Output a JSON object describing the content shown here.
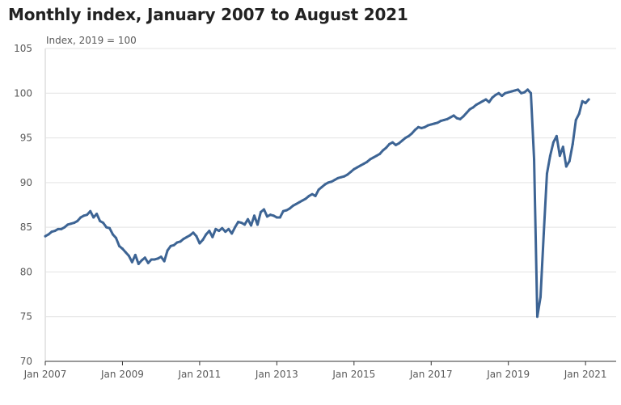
{
  "chart_data": {
    "type": "line",
    "title": "Monthly index, January 2007 to August 2021",
    "ylabel": "Index, 2019 = 100",
    "xlabel": "",
    "ylim": [
      70,
      105
    ],
    "xlim": [
      "2007-01",
      "2021-08"
    ],
    "grid": "horizontal",
    "legend": "none",
    "line_color": "#3d6494",
    "y_ticks": [
      "70",
      "75",
      "80",
      "85",
      "90",
      "95",
      "100",
      "105"
    ],
    "x_ticks": [
      "Jan 2007",
      "Jan 2009",
      "Jan 2011",
      "Jan 2013",
      "Jan 2015",
      "Jan 2017",
      "Jan 2019",
      "Jan 2021"
    ],
    "series": [
      {
        "start": "2007-01",
        "frequency": "monthly",
        "values": [
          84.0,
          84.2,
          84.5,
          84.6,
          84.8,
          84.8,
          85.0,
          85.3,
          85.4,
          85.5,
          85.7,
          86.1,
          86.3,
          86.4,
          86.8,
          86.1,
          86.5,
          85.7,
          85.5,
          85.0,
          84.9,
          84.2,
          83.8,
          82.9,
          82.6,
          82.2,
          81.8,
          81.1,
          81.9,
          80.9,
          81.3,
          81.6,
          81.0,
          81.4,
          81.4,
          81.5,
          81.7,
          81.2,
          82.4,
          82.9,
          83.0,
          83.3,
          83.4,
          83.7,
          83.9,
          84.1,
          84.4,
          84.0,
          83.2,
          83.6,
          84.2,
          84.6,
          83.9,
          84.8,
          84.6,
          84.9,
          84.5,
          84.8,
          84.3,
          85.0,
          85.6,
          85.5,
          85.3,
          85.9,
          85.2,
          86.3,
          85.3,
          86.7,
          87.0,
          86.2,
          86.4,
          86.3,
          86.1,
          86.1,
          86.8,
          86.9,
          87.1,
          87.4,
          87.6,
          87.8,
          88.0,
          88.2,
          88.5,
          88.7,
          88.5,
          89.2,
          89.5,
          89.8,
          90.0,
          90.1,
          90.3,
          90.5,
          90.6,
          90.7,
          90.9,
          91.2,
          91.5,
          91.7,
          91.9,
          92.1,
          92.3,
          92.6,
          92.8,
          93.0,
          93.2,
          93.6,
          93.9,
          94.3,
          94.5,
          94.2,
          94.4,
          94.7,
          95.0,
          95.2,
          95.5,
          95.9,
          96.2,
          96.1,
          96.2,
          96.4,
          96.5,
          96.6,
          96.7,
          96.9,
          97.0,
          97.1,
          97.3,
          97.5,
          97.2,
          97.1,
          97.4,
          97.8,
          98.2,
          98.4,
          98.7,
          98.9,
          99.1,
          99.3,
          99.0,
          99.5,
          99.8,
          100.0,
          99.7,
          100.0,
          100.1,
          100.2,
          100.3,
          100.4,
          100.0,
          100.1,
          100.4,
          100.0,
          92.6,
          75.0,
          77.2,
          84.3,
          91.0,
          93.0,
          94.5,
          95.2,
          93.0,
          94.0,
          91.8,
          92.4,
          94.3,
          97.0,
          97.7,
          99.1,
          98.9,
          99.3
        ]
      }
    ]
  }
}
